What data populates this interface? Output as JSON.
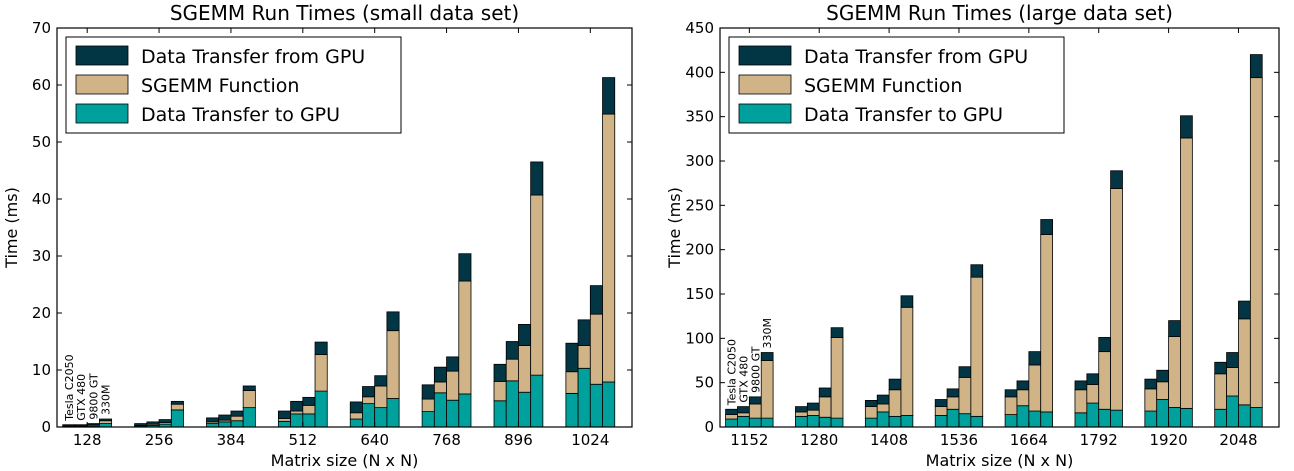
{
  "chart_data": [
    {
      "type": "bar",
      "stacked": true,
      "title": "SGEMM Run Times (small data set)",
      "xlabel": "Matrix size (N x N)",
      "ylabel": "Time (ms)",
      "ylim": [
        0,
        70
      ],
      "yticks": [
        0,
        10,
        20,
        30,
        40,
        50,
        60,
        70
      ],
      "legend_position": "top-left",
      "legend_order": [
        "Data Transfer from GPU",
        "SGEMM Function",
        "Data Transfer to GPU"
      ],
      "categories": [
        "128",
        "256",
        "384",
        "512",
        "640",
        "768",
        "896",
        "1024"
      ],
      "bar_labels": [
        "Tesla C2050",
        "GTX 480",
        "9800 GT",
        "330M"
      ],
      "series": [
        {
          "name": "Data Transfer to GPU",
          "color": "#00a09c",
          "values": [
            [
              0.1,
              0.1,
              0.2,
              0.6
            ],
            [
              0.2,
              0.3,
              0.5,
              3.0
            ],
            [
              0.6,
              0.9,
              1.1,
              3.4
            ],
            [
              1.0,
              2.3,
              2.3,
              6.3
            ],
            [
              1.4,
              4.1,
              3.4,
              5.0
            ],
            [
              2.7,
              6.0,
              4.7,
              5.8
            ],
            [
              4.6,
              8.1,
              6.1,
              9.1
            ],
            [
              5.9,
              10.3,
              7.5,
              7.9
            ]
          ]
        },
        {
          "name": "SGEMM Function",
          "color": "#d0b487",
          "values": [
            [
              0.1,
              0.1,
              0.2,
              0.5
            ],
            [
              0.1,
              0.2,
              0.3,
              1.0
            ],
            [
              0.3,
              0.3,
              0.8,
              3.0
            ],
            [
              0.5,
              0.5,
              1.5,
              6.4
            ],
            [
              1.1,
              1.2,
              3.8,
              11.9
            ],
            [
              2.2,
              1.9,
              5.1,
              19.8
            ],
            [
              3.4,
              3.8,
              8.2,
              31.6
            ],
            [
              3.8,
              4.0,
              12.3,
              47.0
            ]
          ]
        },
        {
          "name": "Data Transfer from GPU",
          "color": "#023645",
          "values": [
            [
              0.2,
              0.2,
              0.2,
              0.3
            ],
            [
              0.3,
              0.4,
              0.5,
              0.5
            ],
            [
              0.7,
              0.9,
              0.9,
              0.8
            ],
            [
              1.3,
              1.7,
              1.4,
              2.2
            ],
            [
              1.9,
              1.8,
              1.8,
              3.3
            ],
            [
              2.5,
              2.6,
              2.5,
              4.8
            ],
            [
              3.0,
              3.1,
              3.7,
              5.8
            ],
            [
              5.0,
              4.5,
              5.0,
              6.4
            ]
          ]
        }
      ]
    },
    {
      "type": "bar",
      "stacked": true,
      "title": "SGEMM Run Times (large data set)",
      "xlabel": "Matrix size (N x N)",
      "ylabel": "Time (ms)",
      "ylim": [
        0,
        450
      ],
      "yticks": [
        0,
        50,
        100,
        150,
        200,
        250,
        300,
        350,
        400,
        450
      ],
      "legend_position": "top-left",
      "legend_order": [
        "Data Transfer from GPU",
        "SGEMM Function",
        "Data Transfer to GPU"
      ],
      "categories": [
        "1152",
        "1280",
        "1408",
        "1536",
        "1664",
        "1792",
        "1920",
        "2048"
      ],
      "bar_labels": [
        "Tesla C2050",
        "GTX 480",
        "9800 GT",
        "330M"
      ],
      "series": [
        {
          "name": "Data Transfer to GPU",
          "color": "#00a09c",
          "values": [
            [
              9,
              12,
              10,
              10
            ],
            [
              12,
              13,
              11,
              10
            ],
            [
              10,
              17,
              12,
              13
            ],
            [
              13,
              20,
              15,
              12
            ],
            [
              14,
              24,
              18,
              17
            ],
            [
              16,
              27,
              20,
              19
            ],
            [
              18,
              31,
              22,
              21
            ],
            [
              20,
              35,
              25,
              22
            ]
          ]
        },
        {
          "name": "SGEMM Function",
          "color": "#d0b487",
          "values": [
            [
              5,
              4,
              16,
              65
            ],
            [
              5,
              6,
              23,
              91
            ],
            [
              13,
              9,
              30,
              122
            ],
            [
              10,
              14,
              41,
              157
            ],
            [
              20,
              18,
              52,
              200
            ],
            [
              26,
              21,
              65,
              250
            ],
            [
              25,
              20,
              80,
              305
            ],
            [
              40,
              32,
              97,
              372
            ]
          ]
        },
        {
          "name": "Data Transfer from GPU",
          "color": "#023645",
          "values": [
            [
              6,
              7,
              8,
              9
            ],
            [
              6,
              8,
              10,
              11
            ],
            [
              7,
              10,
              12,
              13
            ],
            [
              8,
              9,
              12,
              14
            ],
            [
              8,
              10,
              15,
              17
            ],
            [
              10,
              12,
              16,
              20
            ],
            [
              11,
              13,
              18,
              25
            ],
            [
              13,
              17,
              20,
              26
            ]
          ]
        }
      ]
    }
  ]
}
